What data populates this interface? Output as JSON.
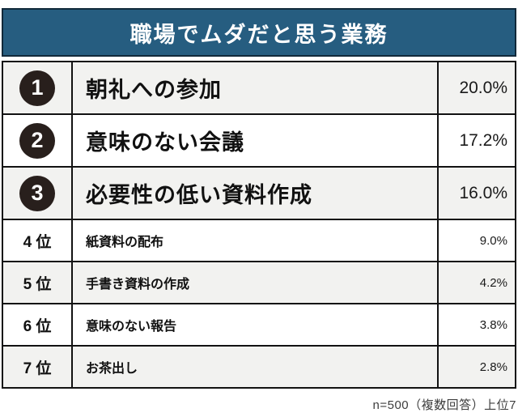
{
  "header": {
    "title": "職場でムダだと思う業務"
  },
  "rows": [
    {
      "rank_label": "1",
      "task": "朝礼への参加",
      "value": "20.0%"
    },
    {
      "rank_label": "2",
      "task": "意味のない会議",
      "value": "17.2%"
    },
    {
      "rank_label": "3",
      "task": "必要性の低い資料作成",
      "value": "16.0%"
    },
    {
      "rank_label": "4 位",
      "task": "紙資料の配布",
      "value": "9.0%"
    },
    {
      "rank_label": "5 位",
      "task": "手書き資料の作成",
      "value": "4.2%"
    },
    {
      "rank_label": "6 位",
      "task": "意味のない報告",
      "value": "3.8%"
    },
    {
      "rank_label": "7 位",
      "task": "お茶出し",
      "value": "2.8%"
    }
  ],
  "footer": {
    "note": "n=500（複数回答）上位7"
  },
  "colors": {
    "header_bg": "#265d80",
    "header_text": "#ffffff",
    "badge_bg": "#281f1c",
    "row_alt_bg": "#f2f2f0",
    "border": "#121212",
    "footer_text": "#3d3d3d"
  },
  "chart_data": {
    "type": "table",
    "title": "職場でムダだと思う業務",
    "categories": [
      "朝礼への参加",
      "意味のない会議",
      "必要性の低い資料作成",
      "紙資料の配布",
      "手書き資料の作成",
      "意味のない報告",
      "お茶出し"
    ],
    "values": [
      20.0,
      17.2,
      16.0,
      9.0,
      4.2,
      3.8,
      2.8
    ],
    "value_unit": "%",
    "ranks": [
      1,
      2,
      3,
      4,
      5,
      6,
      7
    ],
    "note": "n=500（複数回答）上位7"
  }
}
